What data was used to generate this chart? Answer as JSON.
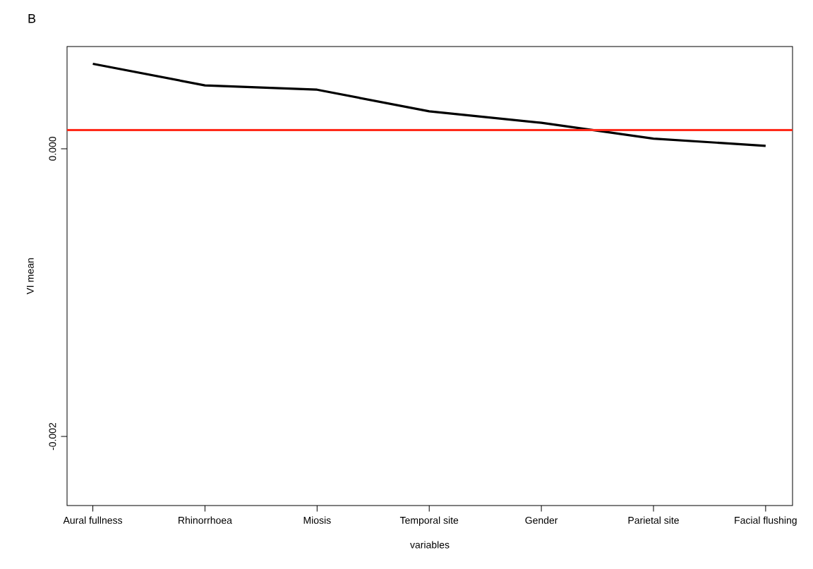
{
  "chart_data": {
    "type": "line",
    "title": "B",
    "xlabel": "variables",
    "ylabel": "VI mean",
    "categories": [
      "Aural fullness",
      "Rhinorrhoea",
      "Miosis",
      "Temporal site",
      "Gender",
      "Parietal site",
      "Facial flushing"
    ],
    "series": [
      {
        "color": "#000000",
        "values": [
          0.00059,
          0.00044,
          0.00041,
          0.00026,
          0.00018,
          7e-05,
          2e-05
        ]
      }
    ],
    "ylim": [
      -0.00248,
      0.00071
    ],
    "yticks": [
      {
        "value": 0,
        "label": "0.000"
      },
      {
        "value": -0.002,
        "label": "-0.002"
      }
    ],
    "ref_lines": [
      {
        "axis": "y",
        "value": 0.00013,
        "color": "#ff2a1a"
      }
    ],
    "grid": false,
    "marker": "none",
    "line_style": "solid"
  }
}
